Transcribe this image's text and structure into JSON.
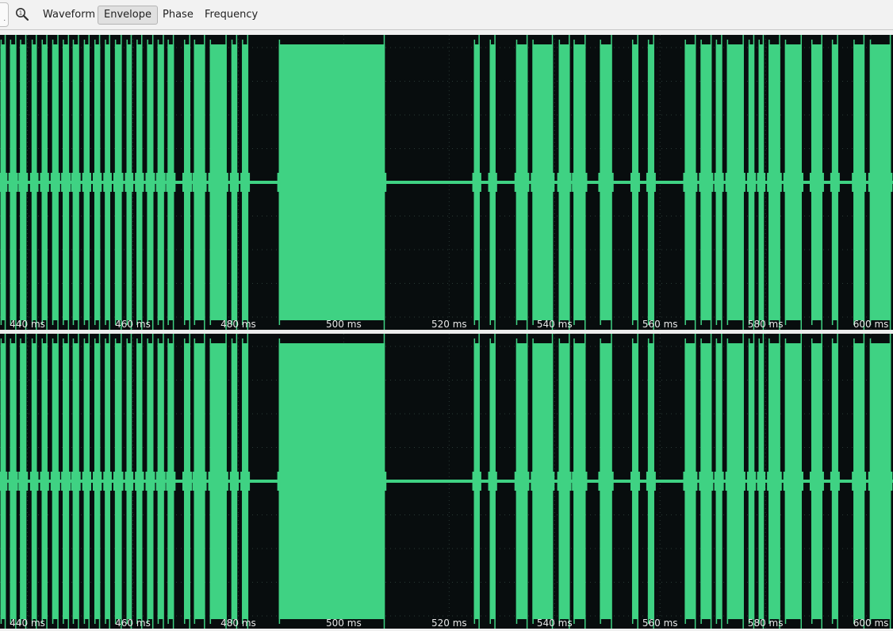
{
  "toolbar": {
    "partial_button_label": ".",
    "zoom_icon": "magnifier-one-icon",
    "tabs": [
      {
        "label": "Waveform",
        "active": false
      },
      {
        "label": "Envelope",
        "active": true
      },
      {
        "label": "Phase",
        "active": false
      },
      {
        "label": "Frequency",
        "active": false
      }
    ]
  },
  "signal": {
    "colors": {
      "background": "#080d0e",
      "trace": "#3fd283",
      "grid": "#2a3a36",
      "label": "#e6e6e6"
    },
    "time_range_ms": [
      434.8,
      604.2
    ],
    "time_ticks": [
      "440 ms",
      "460 ms",
      "480 ms",
      "500 ms",
      "520 ms",
      "540 ms",
      "560 ms",
      "580 ms",
      "600 ms"
    ],
    "time_tick_values_ms": [
      440,
      460,
      480,
      500,
      520,
      540,
      560,
      580,
      600
    ],
    "pulses_ms": [
      [
        434.9,
        435.9
      ],
      [
        436.7,
        437.9
      ],
      [
        438.6,
        439.8
      ],
      [
        440.8,
        441.8
      ],
      [
        442.7,
        443.8
      ],
      [
        444.7,
        445.9
      ],
      [
        446.7,
        447.9
      ],
      [
        448.6,
        449.8
      ],
      [
        450.7,
        451.8
      ],
      [
        452.7,
        453.8
      ],
      [
        454.7,
        455.7
      ],
      [
        456.6,
        457.9
      ],
      [
        458.8,
        459.8
      ],
      [
        460.7,
        461.8
      ],
      [
        462.7,
        463.9
      ],
      [
        464.7,
        465.9
      ],
      [
        466.6,
        467.8
      ],
      [
        469.7,
        470.9
      ],
      [
        471.6,
        473.7
      ],
      [
        474.6,
        477.8
      ],
      [
        478.7,
        479.8
      ],
      [
        480.7,
        481.9
      ],
      [
        487.7,
        507.8
      ],
      [
        524.7,
        525.8
      ],
      [
        527.7,
        528.8
      ],
      [
        532.7,
        534.9
      ],
      [
        535.8,
        539.7
      ],
      [
        540.8,
        542.9
      ],
      [
        543.6,
        545.9
      ],
      [
        548.6,
        550.9
      ],
      [
        554.7,
        555.9
      ],
      [
        557.7,
        558.9
      ],
      [
        564.7,
        566.8
      ],
      [
        567.7,
        569.8
      ],
      [
        570.6,
        571.8
      ],
      [
        572.7,
        575.9
      ],
      [
        576.8,
        577.9
      ],
      [
        578.7,
        579.7
      ],
      [
        580.6,
        582.8
      ],
      [
        583.7,
        586.9
      ],
      [
        588.7,
        590.8
      ],
      [
        592.6,
        593.8
      ],
      [
        596.7,
        598.8
      ],
      [
        599.8,
        603.8
      ]
    ],
    "channels": 2
  }
}
